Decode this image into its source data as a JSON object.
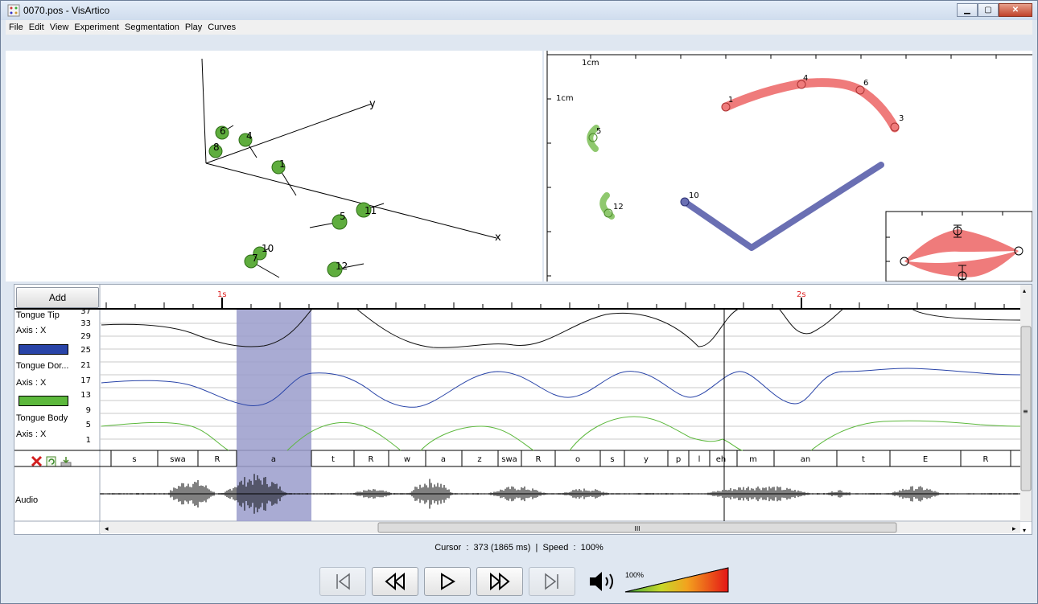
{
  "window": {
    "title": "0070.pos - VisArtico",
    "app_icon": "visartico-app-icon"
  },
  "menu": [
    "File",
    "Edit",
    "View",
    "Experiment",
    "Segmentation",
    "Play",
    "Curves"
  ],
  "view3d": {
    "axes": {
      "x": "x",
      "y": "y"
    },
    "sensors": [
      "6",
      "8",
      "4",
      "1",
      "11",
      "5",
      "10",
      "7",
      "12"
    ]
  },
  "view2d": {
    "scale_x": "1cm",
    "scale_y": "1cm",
    "tongue_points": [
      "1",
      "4",
      "6",
      "3"
    ],
    "jaw_point": "10",
    "left_points": [
      "5",
      "12"
    ]
  },
  "timeline": {
    "add_label": "Add",
    "time_marks": [
      "1s",
      "2s"
    ],
    "channels": [
      {
        "name": "Tongue Tip",
        "axis": "Axis : X",
        "color": "#2944a8",
        "ticks": [
          "37",
          "33",
          "29",
          "25"
        ]
      },
      {
        "name": "Tongue Dor...",
        "axis": "Axis : X",
        "color": "#5cb83c",
        "ticks": [
          "21",
          "17",
          "13",
          "9"
        ]
      },
      {
        "name": "Tongue Body",
        "axis": "Axis : X",
        "color": "#5cb83c",
        "ticks": [
          "5",
          "1"
        ]
      }
    ],
    "segments": [
      "s",
      "swa",
      "R",
      "a",
      "t",
      "R",
      "w",
      "a",
      "z",
      "swa",
      "R",
      "o",
      "s",
      "y",
      "p",
      "l",
      "eh",
      "m",
      "an",
      "t",
      "E",
      "R"
    ],
    "audio_label": "Audio",
    "scroll_marker": "III"
  },
  "status": {
    "cursor_label": "Cursor",
    "cursor_value": "373 (1865 ms)",
    "speed_label": "Speed",
    "speed_value": "100%"
  },
  "player": {
    "volume": "100%",
    "volume_level": 1.0
  }
}
